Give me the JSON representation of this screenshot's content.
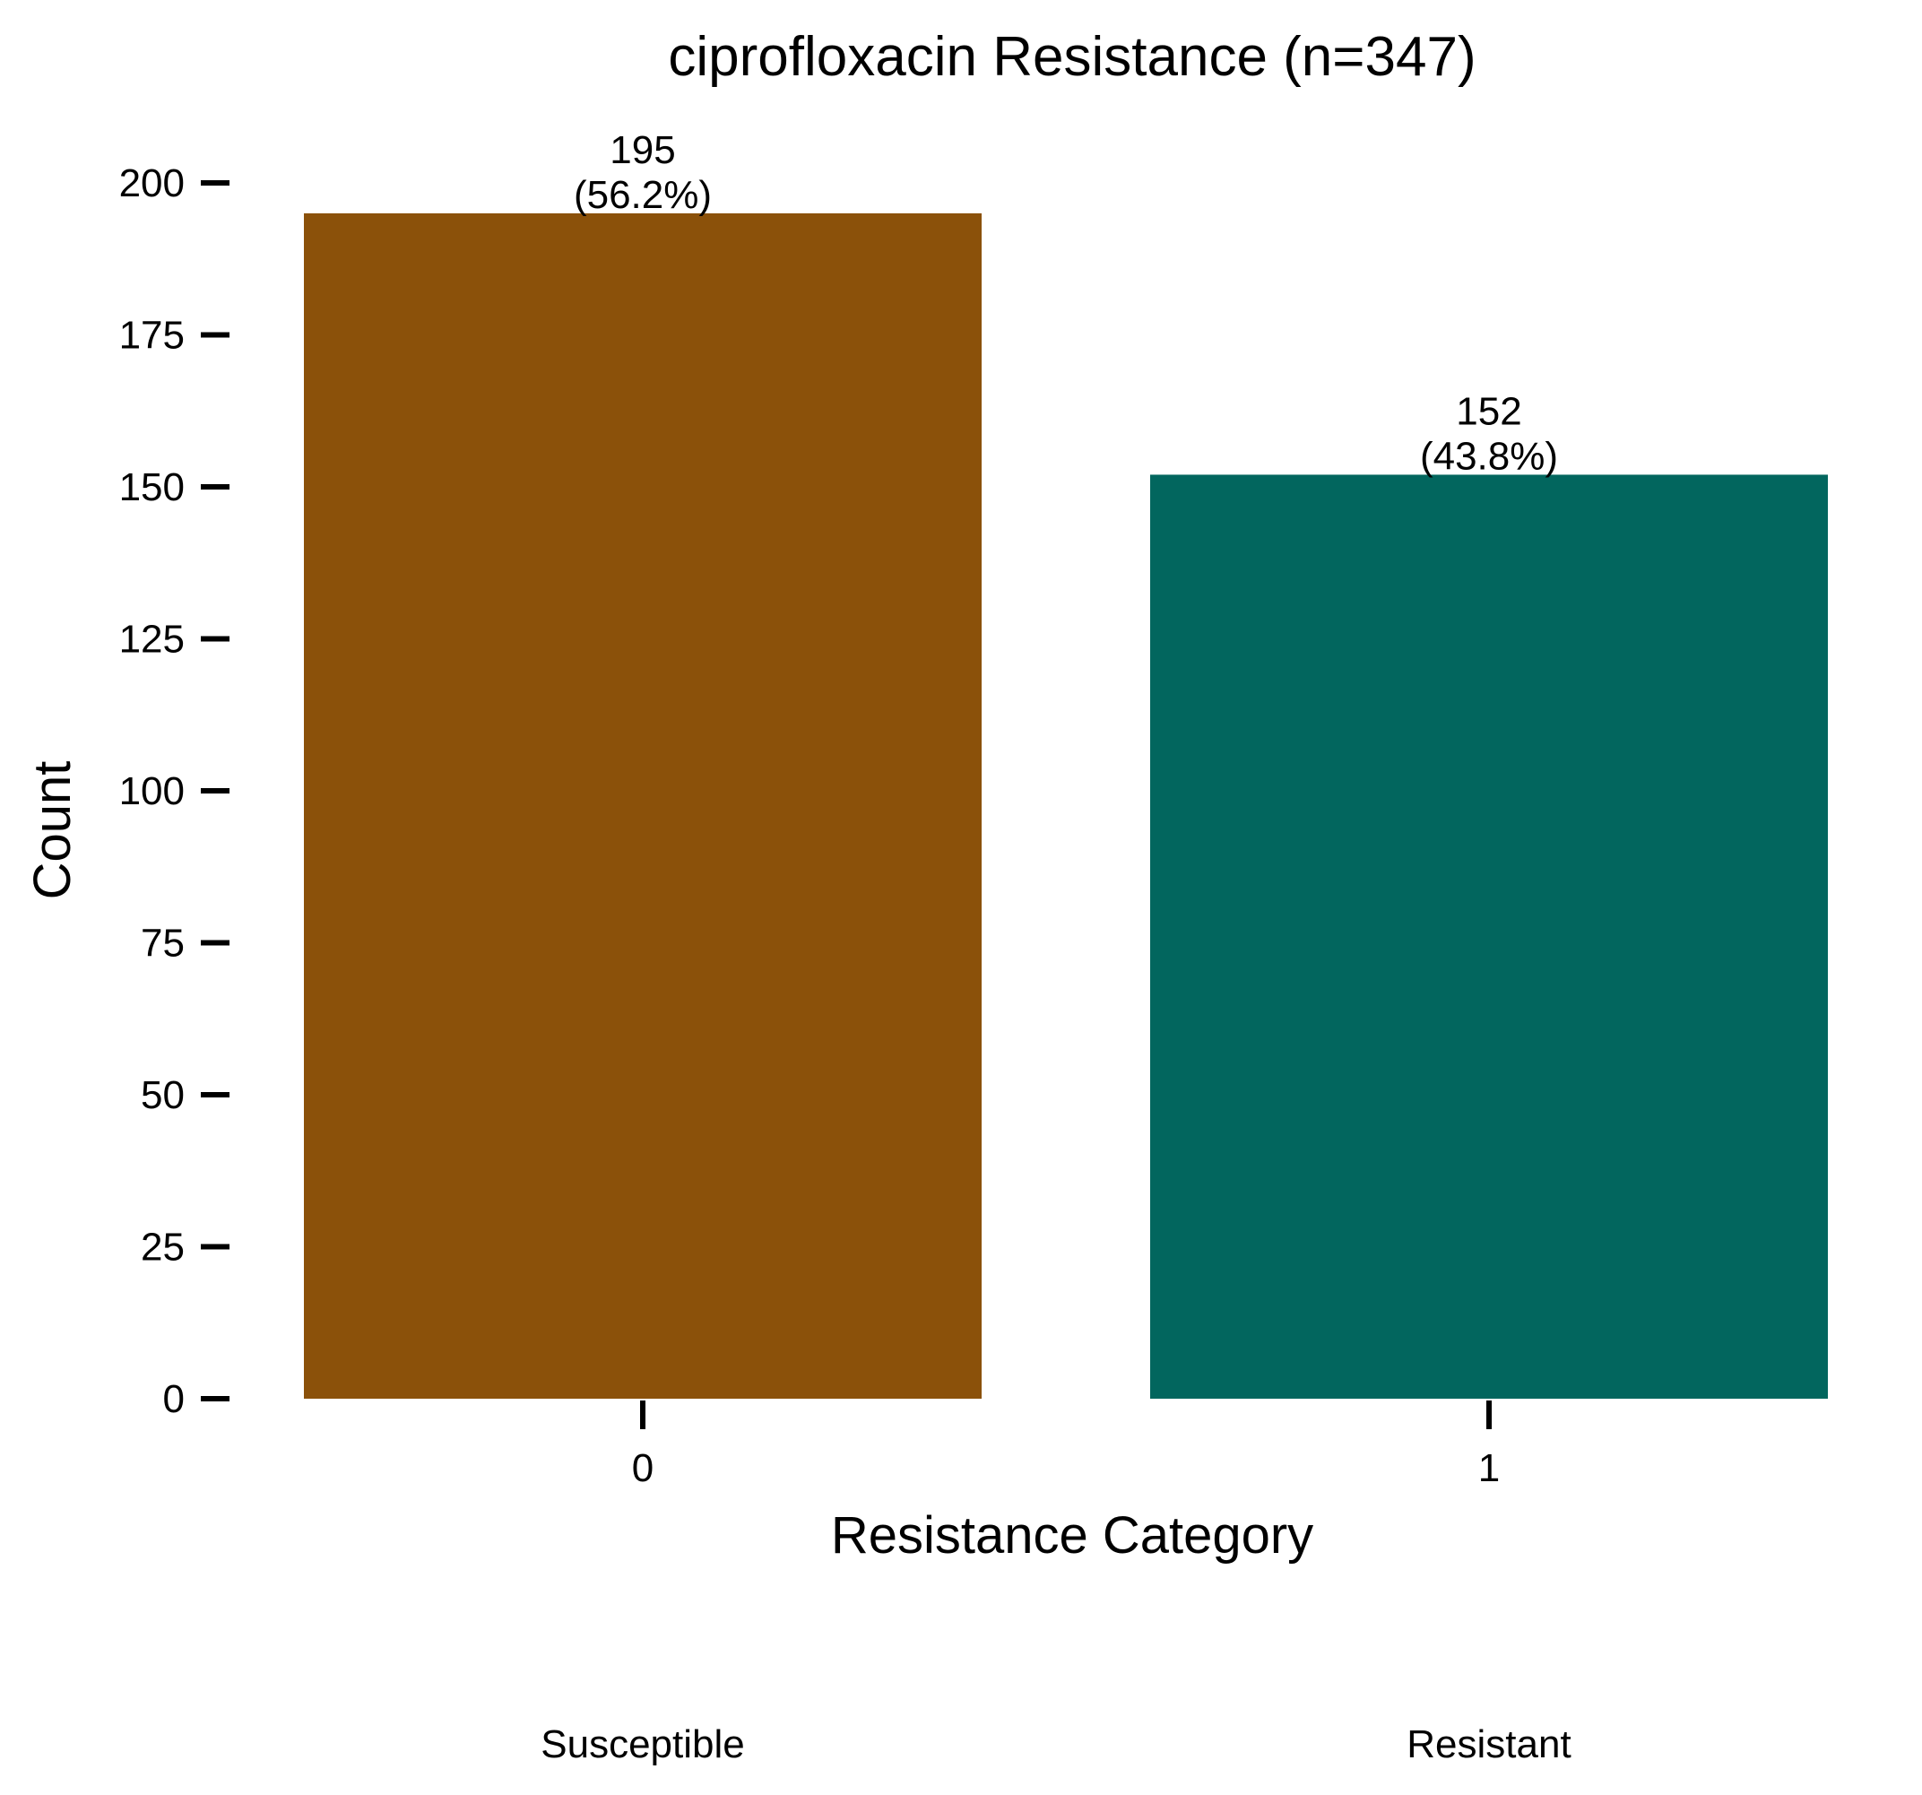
{
  "chart_data": {
    "type": "bar",
    "title": "ciprofloxacin Resistance (n=347)",
    "xlabel": "Resistance Category",
    "ylabel": "Count",
    "categories": [
      "0",
      "1"
    ],
    "category_names": [
      "Susceptible",
      "Resistant"
    ],
    "values": [
      195,
      152
    ],
    "percent_labels": [
      "(56.2%)",
      "(43.8%)"
    ],
    "colors": [
      "#8B510A",
      "#02665E"
    ],
    "ylim": [
      0,
      205
    ],
    "yticks": [
      0,
      25,
      50,
      75,
      100,
      125,
      150,
      175,
      200
    ],
    "grid": false,
    "legend": "none"
  }
}
